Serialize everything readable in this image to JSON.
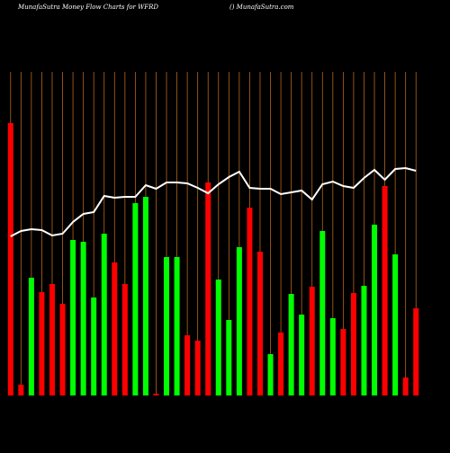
{
  "chart_data": {
    "type": "bar",
    "title": "MunafaSutra  Money Flow  Charts for WFRD",
    "subtitle": "() MunafaSutra.com",
    "categories": [
      null,
      null,
      null,
      null,
      null,
      null,
      null,
      null,
      null,
      null,
      null,
      null,
      null,
      null,
      null,
      null,
      null,
      null,
      null,
      null,
      null,
      null,
      null,
      null,
      null,
      null,
      null,
      null,
      null,
      null,
      null,
      null,
      null,
      null,
      null,
      null,
      null,
      null,
      null,
      null
    ],
    "values": [
      303,
      12,
      131,
      115,
      124,
      102,
      173,
      171,
      109,
      180,
      148,
      124,
      214,
      221,
      2,
      154,
      154,
      67,
      61,
      237,
      129,
      84,
      165,
      209,
      160,
      46,
      70,
      113,
      90,
      121,
      183,
      86,
      74,
      114,
      122,
      190,
      233,
      157,
      20,
      97
    ],
    "colors": [
      "#ff0000",
      "#ff0000",
      "#00ff00",
      "#ff0000",
      "#ff0000",
      "#ff0000",
      "#00ff00",
      "#00ff00",
      "#00ff00",
      "#00ff00",
      "#ff0000",
      "#ff0000",
      "#00ff00",
      "#00ff00",
      "#ff0000",
      "#00ff00",
      "#00ff00",
      "#ff0000",
      "#ff0000",
      "#ff0000",
      "#00ff00",
      "#00ff00",
      "#00ff00",
      "#ff0000",
      "#ff0000",
      "#00ff00",
      "#ff0000",
      "#00ff00",
      "#00ff00",
      "#ff0000",
      "#00ff00",
      "#00ff00",
      "#ff0000",
      "#ff0000",
      "#00ff00",
      "#00ff00",
      "#ff0000",
      "#00ff00",
      "#ff0000",
      "#ff0000"
    ],
    "line": {
      "color": "#ffffff",
      "axis": "y2",
      "values": [
        177,
        183,
        185,
        184,
        178,
        180,
        193,
        202,
        204,
        222,
        220,
        221,
        221,
        234,
        230,
        237,
        237,
        236,
        231,
        225,
        235,
        243,
        249,
        231,
        230,
        230,
        224,
        226,
        228,
        218,
        235,
        238,
        233,
        231,
        242,
        251,
        240,
        252,
        253,
        250
      ]
    },
    "ylim": [
      0,
      360
    ],
    "y2lim": [
      0,
      360
    ],
    "grid": true,
    "grid_color": "#b8651b",
    "background": "#000000"
  }
}
